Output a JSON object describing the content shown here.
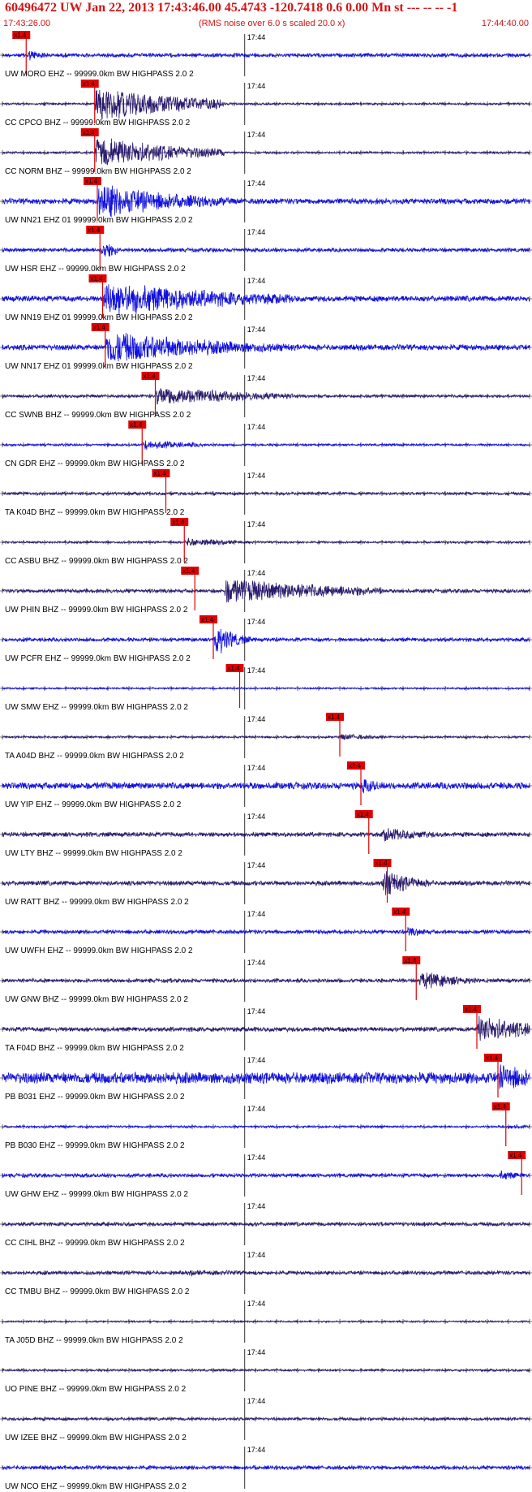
{
  "header": {
    "title": "60496472 UW Jan 22, 2013 17:43:46.00   45.4743 -120.7418  0.6 0.00 Mn st --- -- --   -1",
    "subtitle": "(RMS noise over 6.0 s scaled 20.0 x)",
    "start_time": "17:43:26.00",
    "end_time": "17:44:40.00"
  },
  "chart_data": {
    "type": "line",
    "title": "60496472 UW Jan 22, 2013 17:43:46.00   45.4743 -120.7418  0.6 0.00 Mn st --- -- --   -1",
    "subtitle": "(RMS noise over 6.0 s scaled 20.0 x)",
    "x_axis": {
      "start": "17:43:26.00",
      "end": "17:44:40.00",
      "tick_label": "17:44"
    },
    "pick_label": "x1.4",
    "colors": {
      "blue": "#1010e0",
      "navy": "#2a1a6e",
      "pick": "#e00000",
      "axis": "#000000"
    },
    "traces": [
      {
        "label": "UW MORO EHZ -- 99999.0km BW  HIGHPASS  2.0  2",
        "color": "blue",
        "pick": 0.045,
        "onset": 0.045,
        "burst_end": 0.085,
        "peak": 0.35,
        "dur": 0.04,
        "noise": 0.1
      },
      {
        "label": "CC CPCO BHZ -- 99999.0km BW  HIGHPASS  2.0  2",
        "color": "navy",
        "pick": 0.175,
        "onset": 0.175,
        "burst_end": 0.42,
        "peak": 1.0,
        "dur": 0.18,
        "noise": 0.06
      },
      {
        "label": "CC NORM BHZ -- 99999.0km BW  HIGHPASS  2.0  2",
        "color": "navy",
        "pick": 0.175,
        "onset": 0.175,
        "burst_end": 0.42,
        "peak": 0.9,
        "dur": 0.17,
        "noise": 0.06
      },
      {
        "label": "UW NN21 EHZ 01 99999.0km BW  HIGHPASS  2.0  2",
        "color": "blue",
        "pick": 0.18,
        "onset": 0.18,
        "burst_end": 0.43,
        "peak": 1.0,
        "dur": 0.16,
        "noise": 0.15
      },
      {
        "label": "UW HSR EHZ -- 99999.0km BW  HIGHPASS  2.0  2",
        "color": "blue",
        "pick": 0.185,
        "onset": 0.185,
        "burst_end": 0.22,
        "peak": 0.5,
        "dur": 0.05,
        "noise": 0.1
      },
      {
        "label": "UW NN19 EHZ 01 99999.0km BW  HIGHPASS  2.0  2",
        "color": "blue",
        "pick": 0.19,
        "onset": 0.19,
        "burst_end": 0.55,
        "peak": 1.0,
        "dur": 0.25,
        "noise": 0.15
      },
      {
        "label": "UW NN17 EHZ 01 99999.0km BW  HIGHPASS  2.0  2",
        "color": "blue",
        "pick": 0.195,
        "onset": 0.195,
        "burst_end": 0.55,
        "peak": 0.95,
        "dur": 0.22,
        "noise": 0.15
      },
      {
        "label": "CC SWNB BHZ -- 99999.0km BW  HIGHPASS  2.0  2",
        "color": "navy",
        "pick": 0.29,
        "onset": 0.29,
        "burst_end": 0.55,
        "peak": 0.55,
        "dur": 0.2,
        "noise": 0.08
      },
      {
        "label": "CN GDR EHZ -- 99999.0km BW  HIGHPASS  2.0  2",
        "color": "blue",
        "pick": 0.265,
        "onset": 0.265,
        "burst_end": 0.38,
        "peak": 0.3,
        "dur": 0.1,
        "noise": 0.06
      },
      {
        "label": "TA K04D BHZ -- 99999.0km BW  HIGHPASS  2.0  2",
        "color": "navy",
        "pick": 0.31,
        "onset": 0.31,
        "burst_end": 0.6,
        "peak": 0.1,
        "dur": 0.2,
        "noise": 0.08
      },
      {
        "label": "CC ASBU BHZ -- 99999.0km BW  HIGHPASS  2.0  2",
        "color": "navy",
        "pick": 0.345,
        "onset": 0.345,
        "burst_end": 0.5,
        "peak": 0.25,
        "dur": 0.1,
        "noise": 0.06
      },
      {
        "label": "UW PHIN BHZ -- 99999.0km BW  HIGHPASS  2.0  2",
        "color": "navy",
        "pick": 0.365,
        "onset": 0.42,
        "burst_end": 0.72,
        "peak": 0.7,
        "dur": 0.25,
        "noise": 0.1
      },
      {
        "label": "UW PCFR EHZ -- 99999.0km BW  HIGHPASS  2.0  2",
        "color": "blue",
        "pick": 0.4,
        "onset": 0.4,
        "burst_end": 0.47,
        "peak": 1.0,
        "dur": 0.04,
        "noise": 0.1
      },
      {
        "label": "UW SMW EHZ -- 99999.0km BW  HIGHPASS  2.0  2",
        "color": "blue",
        "pick": 0.45,
        "onset": 0.45,
        "burst_end": 0.47,
        "peak": 0.1,
        "dur": 0.02,
        "noise": 0.05
      },
      {
        "label": "TA A04D BHZ -- 99999.0km BW  HIGHPASS  2.0  2",
        "color": "navy",
        "pick": 0.64,
        "onset": 0.64,
        "burst_end": 0.75,
        "peak": 0.2,
        "dur": 0.08,
        "noise": 0.06
      },
      {
        "label": "UW YIP EHZ -- 99999.0km BW  HIGHPASS  2.0  2",
        "color": "blue",
        "pick": 0.68,
        "onset": 0.68,
        "burst_end": 0.72,
        "peak": 0.5,
        "dur": 0.04,
        "noise": 0.18
      },
      {
        "label": "UW LTY BHZ -- 99999.0km BW  HIGHPASS  2.0  2",
        "color": "navy",
        "pick": 0.695,
        "onset": 0.72,
        "burst_end": 0.88,
        "peak": 0.4,
        "dur": 0.1,
        "noise": 0.12
      },
      {
        "label": "UW RATT BHZ -- 99999.0km BW  HIGHPASS  2.0  2",
        "color": "navy",
        "pick": 0.73,
        "onset": 0.72,
        "burst_end": 0.82,
        "peak": 0.8,
        "dur": 0.06,
        "noise": 0.12
      },
      {
        "label": "UW UWFH EHZ -- 99999.0km BW  HIGHPASS  2.0  2",
        "color": "blue",
        "pick": 0.765,
        "onset": 0.765,
        "burst_end": 0.82,
        "peak": 0.3,
        "dur": 0.05,
        "noise": 0.1
      },
      {
        "label": "UW GNW BHZ -- 99999.0km BW  HIGHPASS  2.0  2",
        "color": "navy",
        "pick": 0.785,
        "onset": 0.79,
        "burst_end": 0.9,
        "peak": 0.55,
        "dur": 0.08,
        "noise": 0.1
      },
      {
        "label": "TA F04D BHZ -- 99999.0km BW  HIGHPASS  2.0  2",
        "color": "navy",
        "pick": 0.9,
        "onset": 0.9,
        "burst_end": 1.0,
        "peak": 0.8,
        "dur": 0.12,
        "noise": 0.12
      },
      {
        "label": "PB B031 EHZ -- 99999.0km BW  HIGHPASS  2.0  2",
        "color": "blue",
        "pick": 0.94,
        "onset": 0.94,
        "burst_end": 1.0,
        "peak": 0.8,
        "dur": 0.1,
        "noise": 0.3
      },
      {
        "label": "PB B030 EHZ -- 99999.0km BW  HIGHPASS  2.0  2",
        "color": "blue",
        "pick": 0.955,
        "onset": 0.96,
        "burst_end": 1.0,
        "peak": 0.15,
        "dur": 0.05,
        "noise": 0.06
      },
      {
        "label": "UW GHW EHZ -- 99999.0km BW  HIGHPASS  2.0  2",
        "color": "blue",
        "pick": 0.985,
        "onset": 0.94,
        "burst_end": 1.0,
        "peak": 0.3,
        "dur": 0.05,
        "noise": 0.1
      },
      {
        "label": "CC CIHL BHZ -- 99999.0km BW  HIGHPASS  2.0  2",
        "color": "navy",
        "noise": 0.1
      },
      {
        "label": "CC TMBU BHZ -- 99999.0km BW  HIGHPASS  2.0  2",
        "color": "navy",
        "onset": 0.35,
        "burst_end": 0.8,
        "peak": 0.15,
        "dur": 0.3,
        "noise": 0.1
      },
      {
        "label": "TA J05D BHZ -- 99999.0km BW  HIGHPASS  2.0  2",
        "color": "navy",
        "noise": 0.05
      },
      {
        "label": "UO PINE BHZ -- 99999.0km BW  HIGHPASS  2.0  2",
        "color": "navy",
        "noise": 0.06
      },
      {
        "label": "UW IZEE BHZ -- 99999.0km BW  HIGHPASS  2.0  2",
        "color": "navy",
        "noise": 0.08
      },
      {
        "label": "UW NCO EHZ -- 99999.0km BW  HIGHPASS  2.0  2",
        "color": "blue",
        "noise": 0.1
      }
    ]
  }
}
